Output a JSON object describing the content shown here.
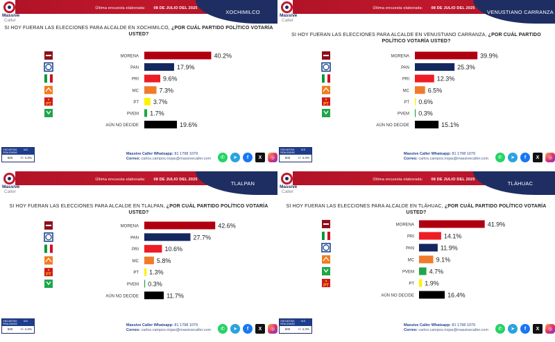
{
  "header": {
    "prefix": "Última encuesta elaborada:",
    "date": "08 DE JULIO DEL 2025"
  },
  "brand": {
    "line1": "Massive",
    "line2": "Caller",
    "colors": {
      "red": "#c0182d",
      "navy": "#1e2e63"
    }
  },
  "footer": {
    "col1": "ENCUESTAS REALIZADAS",
    "col2": "M.E.",
    "count": "600",
    "margin": "+/- 4.3%",
    "whatsapp_label": "Massive Caller Whatsapp:",
    "whatsapp_number": "81 1798 1079",
    "email_label": "Correo:",
    "email": "carlos.campos.riojas@massivecaller.com",
    "social_icons": [
      "whatsapp-icon",
      "telegram-icon",
      "facebook-icon",
      "x-icon",
      "instagram-icon"
    ]
  },
  "panels": [
    {
      "municipality": "XOCHIMILCO",
      "question_plain": "SI HOY FUERAN LAS ELECCIONES PARA ALCALDE EN XOCHIMILCO,",
      "question_bold": "¿POR CUÁL PARTIDO POLÍTICO VOTARÍA USTED?",
      "chart_data": {
        "type": "bar",
        "orientation": "horizontal",
        "categories": [
          "MORENA",
          "PAN",
          "PRI",
          "MC",
          "PT",
          "PVEM",
          "AÚN NO DECIDE"
        ],
        "values": [
          40.2,
          17.9,
          9.6,
          7.3,
          3.7,
          1.7,
          19.6
        ],
        "value_labels": [
          "40.2%",
          "17.9%",
          "9.6%",
          "7.3%",
          "3.7%",
          "1.7%",
          "19.6%"
        ],
        "logos": [
          "morena",
          "pan",
          "pri",
          "mc",
          "pt",
          "pvem",
          ""
        ],
        "colors": [
          "#b0000f",
          "#14275f",
          "#ee1c24",
          "#f07b2a",
          "#fff200",
          "#1fa64a",
          "#000000"
        ],
        "unit": "%"
      }
    },
    {
      "municipality": "VENUSTIANO CARRANZA",
      "question_plain": "SI HOY FUERAN LAS ELECCIONES PARA ALCALDE EN VENUSTIANO CARRANZA,",
      "question_bold": "¿POR CUÁL PARTIDO POLÍTICO VOTARÍA USTED?",
      "chart_data": {
        "type": "bar",
        "orientation": "horizontal",
        "categories": [
          "MORENA",
          "PAN",
          "PRI",
          "MC",
          "PT",
          "PVEM",
          "AÚN NO DECIDE"
        ],
        "values": [
          39.9,
          25.3,
          12.3,
          6.5,
          0.6,
          0.3,
          15.1
        ],
        "value_labels": [
          "39.9%",
          "25.3%",
          "12.3%",
          "6.5%",
          "0.6%",
          "0.3%",
          "15.1%"
        ],
        "logos": [
          "morena",
          "pan",
          "pri",
          "mc",
          "pt",
          "pvem",
          ""
        ],
        "colors": [
          "#b0000f",
          "#14275f",
          "#ee1c24",
          "#f07b2a",
          "#fff200",
          "#1fa64a",
          "#000000"
        ],
        "unit": "%"
      }
    },
    {
      "municipality": "TLALPAN",
      "question_plain": "SI HOY FUERAN LAS ELECCIONES PARA ALCALDE EN TLALPAN,",
      "question_bold": "¿POR CUÁL PARTIDO POLÍTICO VOTARÍA USTED?",
      "chart_data": {
        "type": "bar",
        "orientation": "horizontal",
        "categories": [
          "MORENA",
          "PAN",
          "PRI",
          "MC",
          "PT",
          "PVEM",
          "AÚN NO DECIDE"
        ],
        "values": [
          42.6,
          27.7,
          10.6,
          5.8,
          1.3,
          0.3,
          11.7
        ],
        "value_labels": [
          "42.6%",
          "27.7%",
          "10.6%",
          "5.8%",
          "1.3%",
          "0.3%",
          "11.7%"
        ],
        "logos": [
          "morena",
          "pan",
          "pri",
          "mc",
          "pt",
          "pvem",
          ""
        ],
        "colors": [
          "#b0000f",
          "#14275f",
          "#ee1c24",
          "#f07b2a",
          "#fff200",
          "#1fa64a",
          "#000000"
        ],
        "unit": "%"
      }
    },
    {
      "municipality": "TLÁHUAC",
      "question_plain": "SI HOY FUERAN LAS ELECCIONES PARA ALCALDE EN TLÁHUAC,",
      "question_bold": "¿POR CUÁL PARTIDO POLÍTICO VOTARÍA USTED?",
      "chart_data": {
        "type": "bar",
        "orientation": "horizontal",
        "categories": [
          "MORENA",
          "PRI",
          "PAN",
          "MC",
          "PVEM",
          "PT",
          "AÚN NO DECIDE"
        ],
        "values": [
          41.9,
          14.1,
          11.9,
          9.1,
          4.7,
          1.9,
          16.4
        ],
        "value_labels": [
          "41.9%",
          "14.1%",
          "11.9%",
          "9.1%",
          "4.7%",
          "1.9%",
          "16.4%"
        ],
        "logos": [
          "morena",
          "pri",
          "pan",
          "mc",
          "pvem",
          "pt",
          ""
        ],
        "colors": [
          "#b0000f",
          "#ee1c24",
          "#14275f",
          "#f07b2a",
          "#1fa64a",
          "#fff200",
          "#000000"
        ],
        "unit": "%"
      }
    }
  ]
}
